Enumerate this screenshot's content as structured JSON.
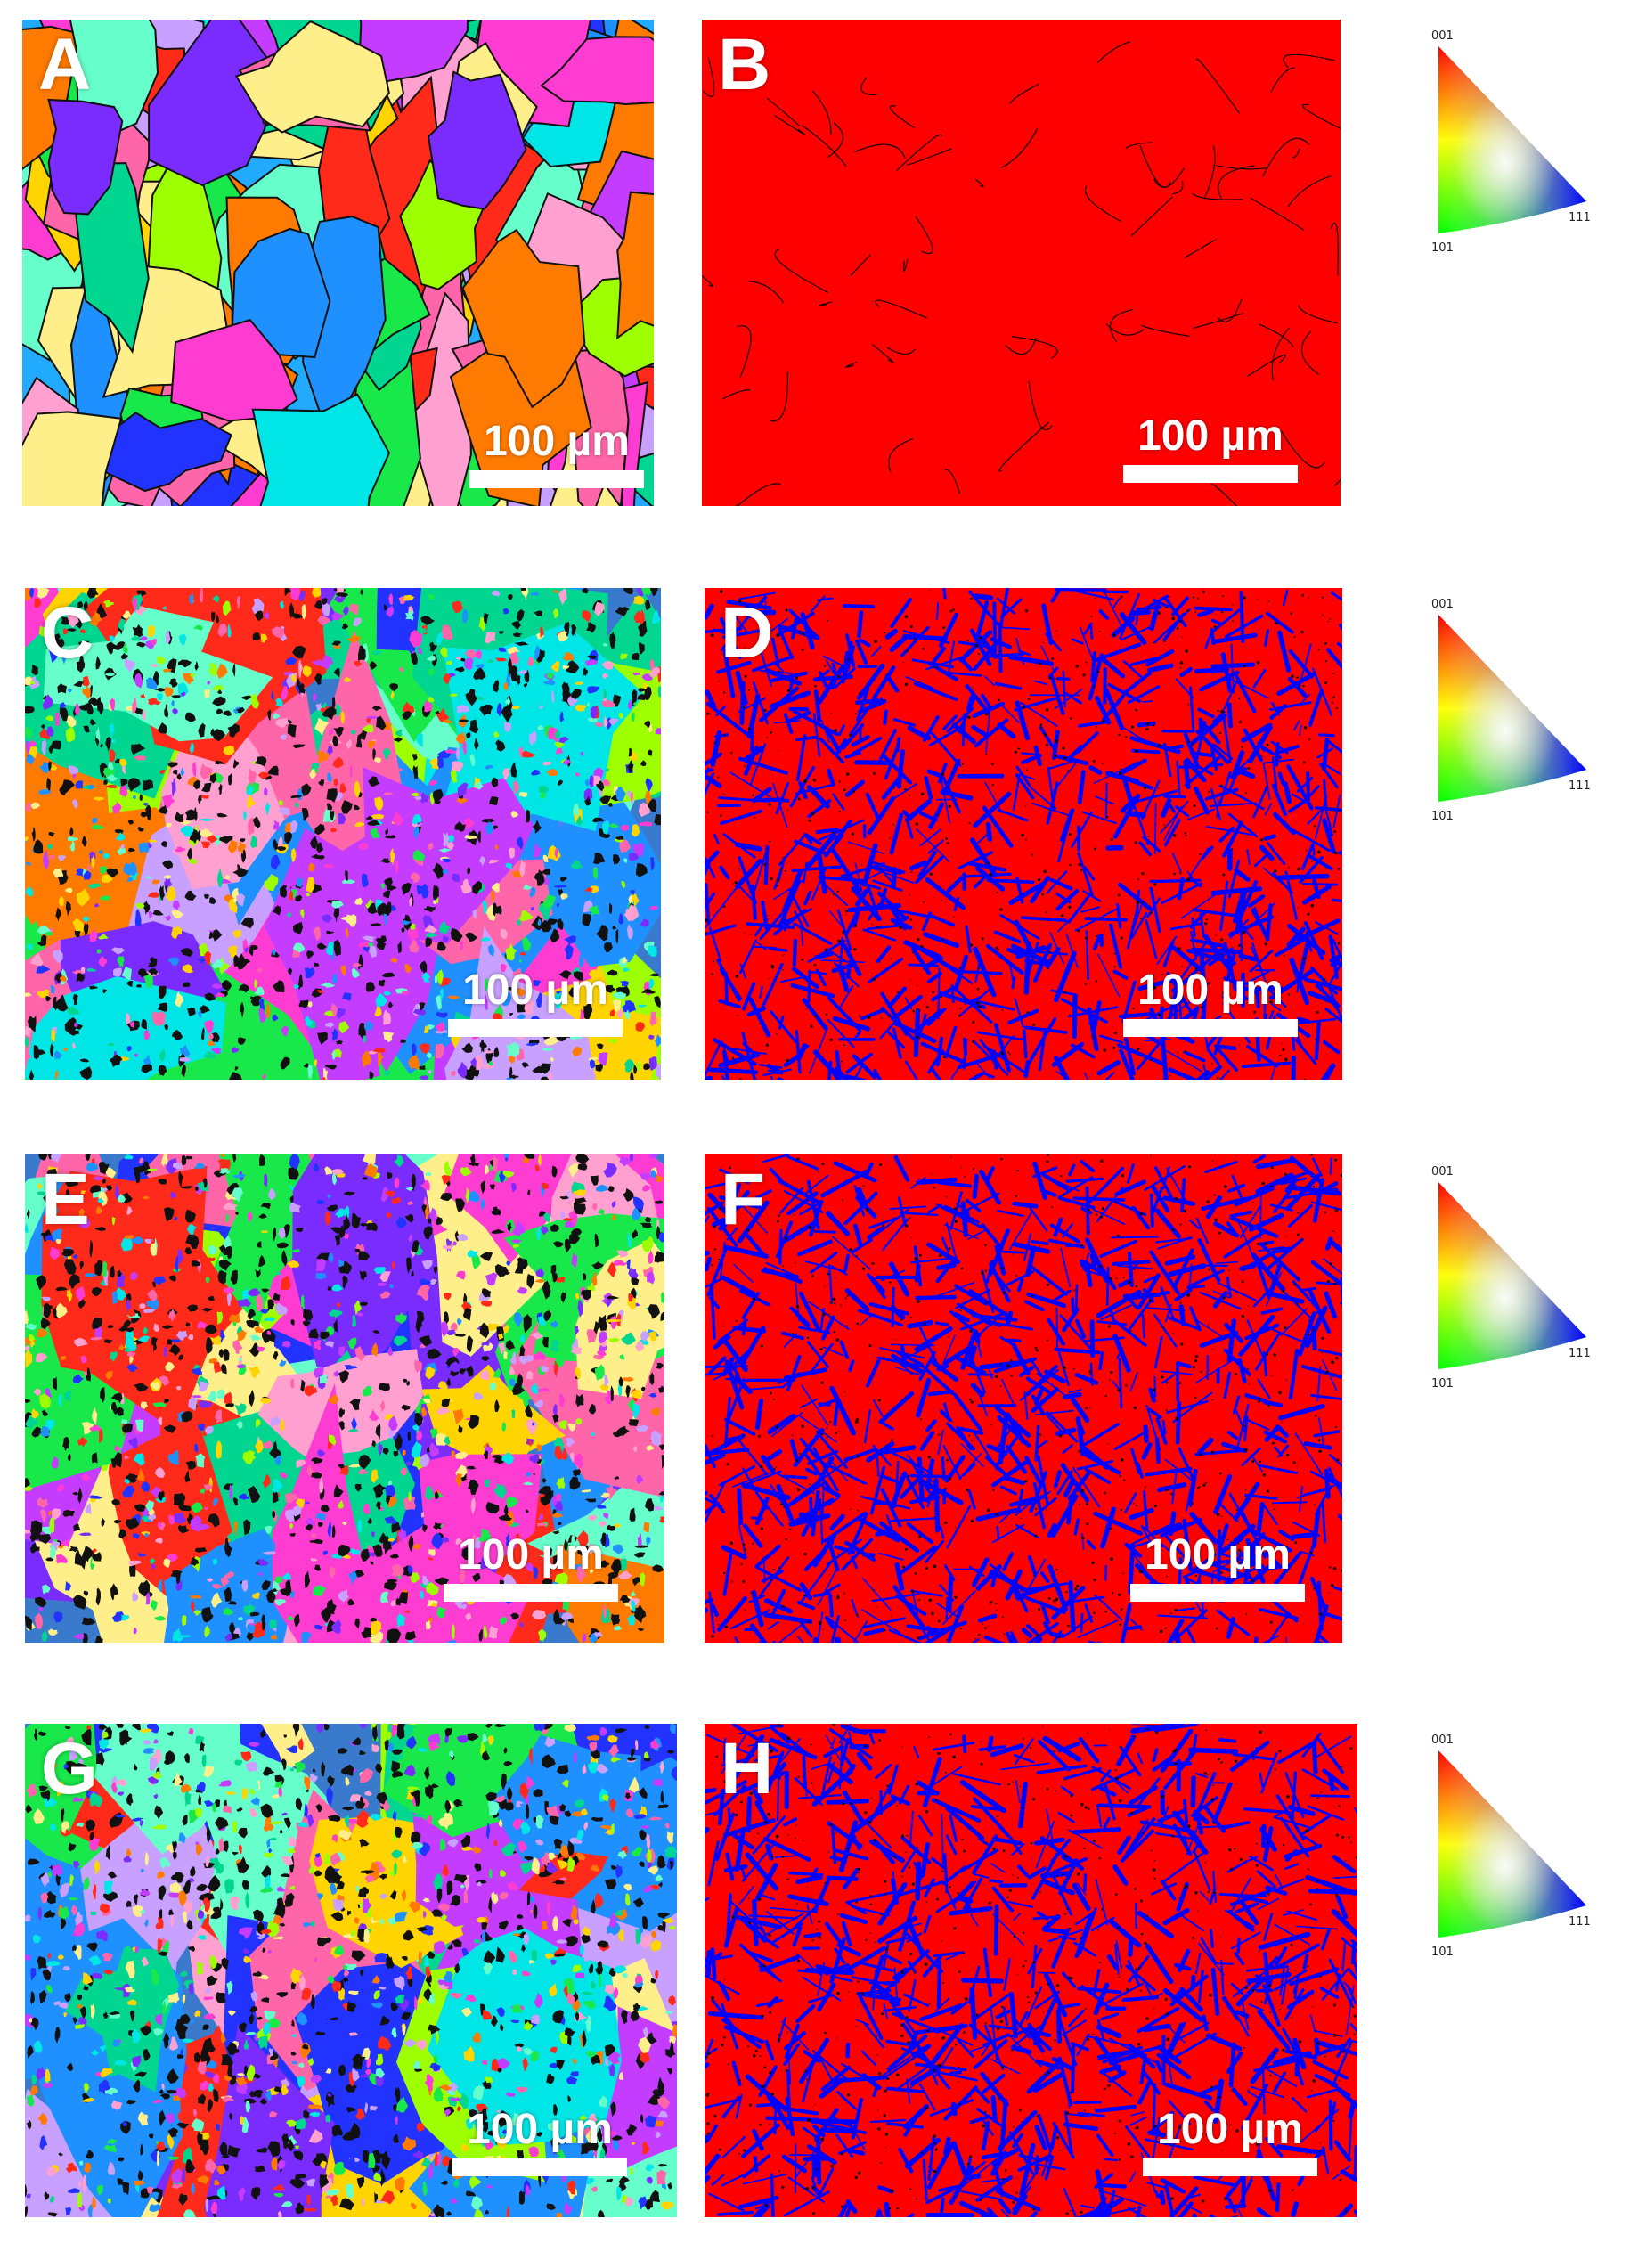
{
  "panels": [
    {
      "letter": "A",
      "type": "ipf",
      "seed": 11,
      "scale": "100 µm"
    },
    {
      "letter": "B",
      "type": "phase-austenite",
      "seed": 12,
      "scale": "100 µm"
    },
    {
      "letter": "C",
      "type": "ipf-fine",
      "seed": 21,
      "scale": "100 µm"
    },
    {
      "letter": "D",
      "type": "phase-duplex",
      "seed": 22,
      "scale": "100 µm"
    },
    {
      "letter": "E",
      "type": "ipf-fine",
      "seed": 31,
      "scale": "100 µm"
    },
    {
      "letter": "F",
      "type": "phase-duplex",
      "seed": 32,
      "scale": "100 µm"
    },
    {
      "letter": "G",
      "type": "ipf-fine",
      "seed": 41,
      "scale": "100 µm"
    },
    {
      "letter": "H",
      "type": "phase-duplex",
      "seed": 42,
      "scale": "100 µm"
    }
  ],
  "legend": {
    "labels": {
      "top": "001",
      "left": "101",
      "right": "111"
    }
  },
  "colors": {
    "austenite": "#ff0000",
    "ferrite": "#0000ff",
    "boundary": "#1a0000"
  }
}
